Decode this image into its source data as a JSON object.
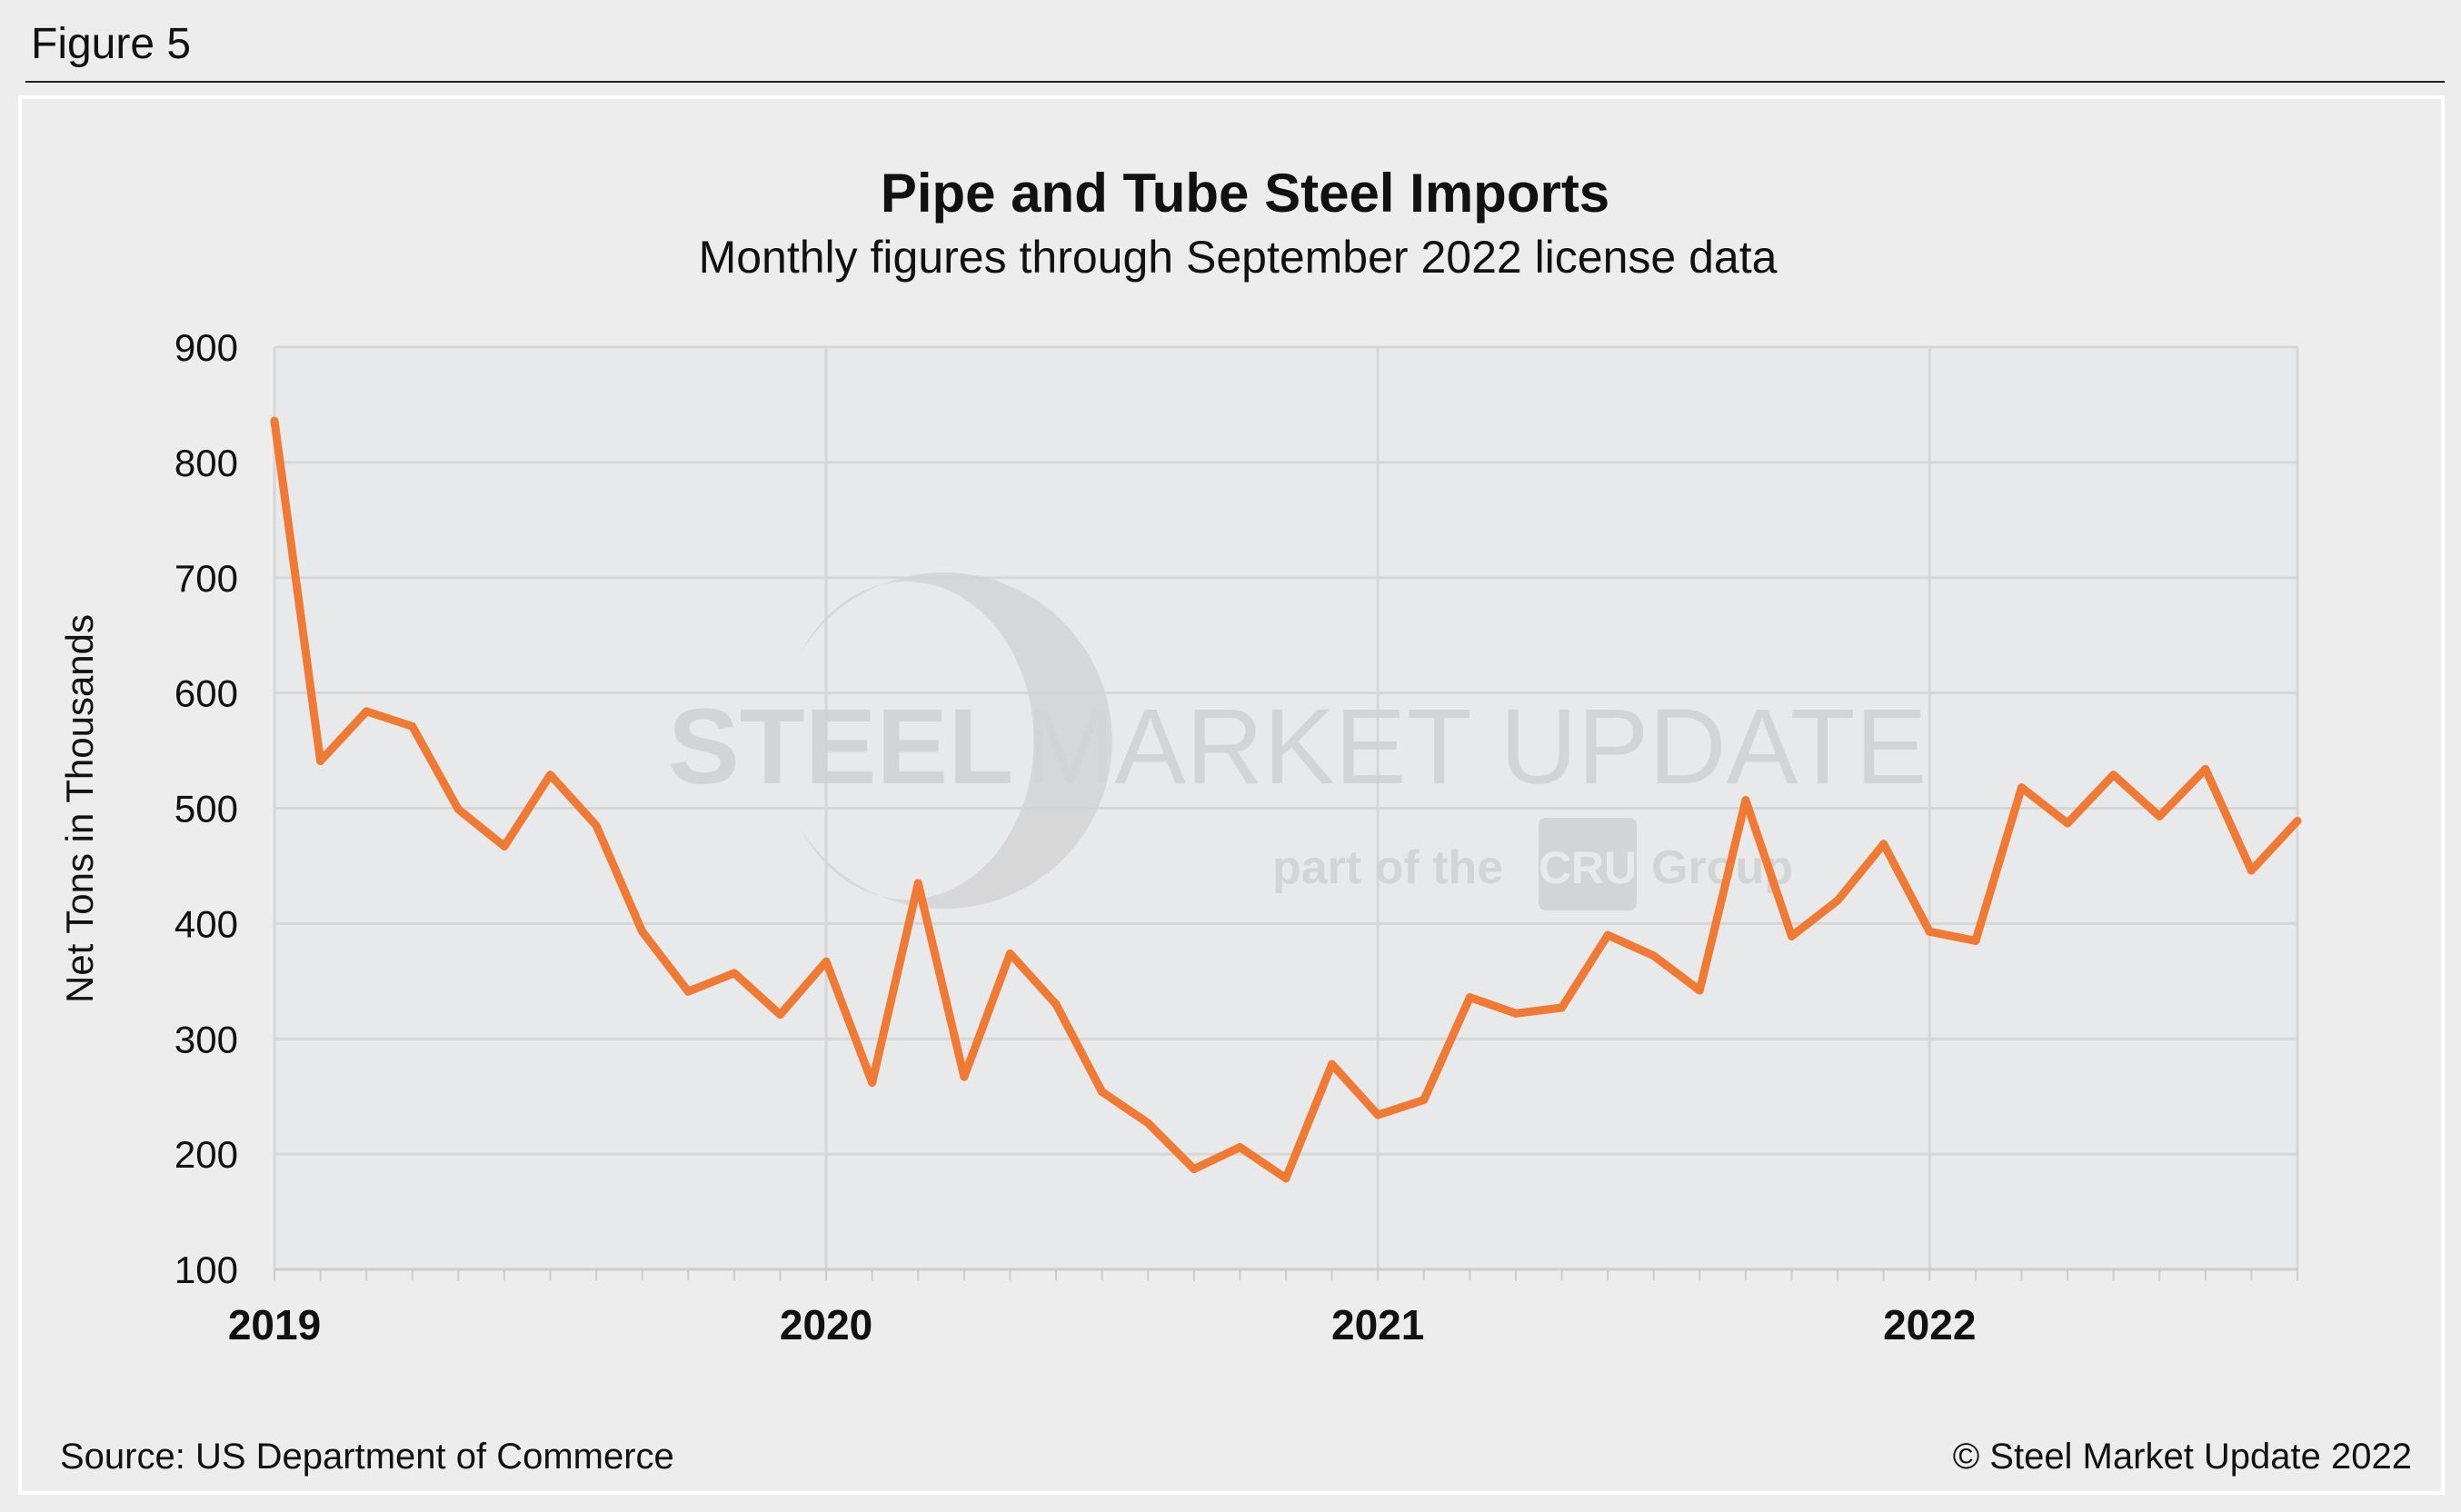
{
  "figure_label": "Figure 5",
  "source": "Source: US Department of Commerce",
  "copyright": "© Steel Market Update 2022",
  "watermark": {
    "main_bold": "STEEL",
    "main_light": "MARKET UPDATE",
    "sub": "part of the",
    "badge": "CRU",
    "sub2": "Group"
  },
  "colors": {
    "line": "#f07a33",
    "plot_bg": "#e8e9ea",
    "grid": "#d6d6d6",
    "page_bg": "#ededed"
  },
  "chart_data": {
    "type": "line",
    "title": "Pipe and Tube Steel Imports",
    "subtitle": "Monthly figures through September 2022 license data",
    "xlabel": "",
    "ylabel": "Net Tons in Thousands",
    "ylim": [
      100,
      900
    ],
    "yticks": [
      "100",
      "200",
      "300",
      "400",
      "500",
      "600",
      "700",
      "800",
      "900"
    ],
    "xticks": [
      "2019",
      "2020",
      "2021",
      "2022"
    ],
    "grid": true,
    "x_start": "2019-01",
    "x_end": "2022-09",
    "x": [
      "2019-01",
      "2019-02",
      "2019-03",
      "2019-04",
      "2019-05",
      "2019-06",
      "2019-07",
      "2019-08",
      "2019-09",
      "2019-10",
      "2019-11",
      "2019-12",
      "2020-01",
      "2020-02",
      "2020-03",
      "2020-04",
      "2020-05",
      "2020-06",
      "2020-07",
      "2020-08",
      "2020-09",
      "2020-10",
      "2020-11",
      "2020-12",
      "2021-01",
      "2021-02",
      "2021-03",
      "2021-04",
      "2021-05",
      "2021-06",
      "2021-07",
      "2021-08",
      "2021-09",
      "2021-10",
      "2021-11",
      "2021-12",
      "2022-01",
      "2022-02",
      "2022-03",
      "2022-04",
      "2022-05",
      "2022-06",
      "2022-07",
      "2022-08",
      "2022-09"
    ],
    "values": [
      836,
      541,
      584,
      571,
      499,
      467,
      529,
      485,
      393,
      341,
      357,
      321,
      367,
      262,
      435,
      267,
      374,
      330,
      254,
      227,
      187,
      206,
      179,
      278,
      234,
      247,
      336,
      322,
      327,
      390,
      372,
      342,
      507,
      389,
      420,
      469,
      393,
      385,
      518,
      487,
      529,
      493,
      534,
      446,
      489
    ]
  }
}
